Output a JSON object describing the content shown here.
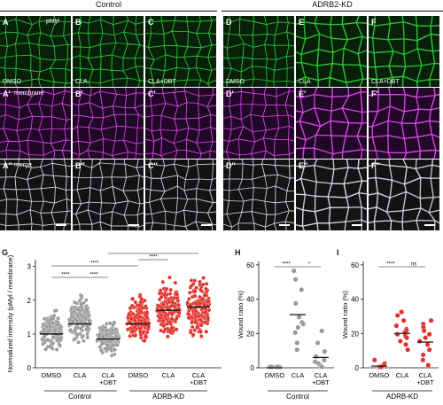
{
  "headers": {
    "control": "Control",
    "kd": "ADRB2-KD"
  },
  "grid": {
    "rows": [
      {
        "stain": "pMyl",
        "prefix": "",
        "color": "#2fd03a",
        "bg": "#08200a"
      },
      {
        "stain": "membrane",
        "prefix": "'",
        "color": "#e04bef",
        "bg": "#200826"
      },
      {
        "stain": "merge",
        "prefix": "''",
        "color": "#e7d8ee",
        "bg": "#121414"
      }
    ],
    "columns": [
      {
        "letter": "A",
        "condition": "DMSO"
      },
      {
        "letter": "B",
        "condition": "CLA"
      },
      {
        "letter": "C",
        "condition": "CLA+DBT"
      },
      {
        "letter": "D",
        "condition": "DMSO"
      },
      {
        "letter": "E",
        "condition": "CLA"
      },
      {
        "letter": "F",
        "condition": "CLA+DBT"
      }
    ]
  },
  "chart_data": [
    {
      "panel": "G",
      "type": "scatter",
      "ylabel": "Normalized intensity (pMyl / membrane)",
      "yticks": [
        0,
        1,
        2,
        3
      ],
      "ylim": [
        0,
        3.2
      ],
      "categories": [
        "DMSO",
        "CLA",
        "CLA +DBT",
        "DMSO",
        "CLA",
        "CLA +DBT"
      ],
      "groups": [
        "Control",
        "ADRB-KD"
      ],
      "series": [
        {
          "category": "DMSO",
          "group": "Control",
          "median": 1.0,
          "range": [
            0.35,
            1.85
          ],
          "color": "#999999"
        },
        {
          "category": "CLA",
          "group": "Control",
          "median": 1.3,
          "range": [
            0.55,
            2.3
          ],
          "color": "#999999"
        },
        {
          "category": "CLA +DBT",
          "group": "Control",
          "median": 0.85,
          "range": [
            0.3,
            1.5
          ],
          "color": "#999999"
        },
        {
          "category": "DMSO",
          "group": "ADRB-KD",
          "median": 1.3,
          "range": [
            0.55,
            2.3
          ],
          "color": "#e0302b"
        },
        {
          "category": "CLA",
          "group": "ADRB-KD",
          "median": 1.7,
          "range": [
            0.6,
            2.85
          ],
          "color": "#e0302b"
        },
        {
          "category": "CLA +DBT",
          "group": "ADRB-KD",
          "median": 1.8,
          "range": [
            0.6,
            2.9
          ],
          "color": "#e0302b"
        }
      ],
      "significance": [
        "****",
        "****",
        "****",
        "****",
        "****"
      ]
    },
    {
      "panel": "H",
      "type": "scatter",
      "ylabel": "Wound ratio (%)",
      "yticks": [
        0,
        20,
        40,
        60
      ],
      "ylim": [
        0,
        62
      ],
      "categories": [
        "DMSO",
        "CLA",
        "CLA +DBT"
      ],
      "groups": [
        "Control"
      ],
      "series": [
        {
          "category": "DMSO",
          "values": [
            0,
            0,
            0,
            0,
            0,
            0
          ],
          "mean": 0,
          "color": "#999999"
        },
        {
          "category": "CLA",
          "values": [
            56,
            51,
            45,
            37,
            29,
            26,
            25,
            23,
            20,
            14,
            10
          ],
          "mean": 31,
          "color": "#999999"
        },
        {
          "category": "CLA +DBT",
          "values": [
            21,
            14,
            9,
            6,
            4,
            3,
            2,
            1,
            0,
            0
          ],
          "mean": 6,
          "color": "#999999"
        }
      ],
      "significance": [
        "****",
        "*"
      ]
    },
    {
      "panel": "I",
      "type": "scatter",
      "ylabel": "Wound ratio (%)",
      "yticks": [
        0,
        20,
        40,
        60
      ],
      "ylim": [
        0,
        62
      ],
      "categories": [
        "DMSO",
        "CLA",
        "CLA +DBT"
      ],
      "groups": [
        "ADRB-KD"
      ],
      "series": [
        {
          "category": "DMSO",
          "values": [
            4,
            2,
            1,
            0,
            0,
            0,
            0,
            0
          ],
          "mean": 1,
          "color": "#e0302b"
        },
        {
          "category": "CLA",
          "values": [
            32,
            30,
            27,
            24,
            22,
            21,
            20,
            19,
            18,
            17,
            15,
            13,
            10
          ],
          "mean": 20,
          "color": "#e0302b"
        },
        {
          "category": "CLA +DBT",
          "values": [
            27,
            25,
            23,
            21,
            19,
            17,
            15,
            13,
            10,
            7,
            4,
            1
          ],
          "mean": 15,
          "color": "#e0302b"
        }
      ],
      "significance": [
        "****",
        "ns"
      ]
    }
  ]
}
